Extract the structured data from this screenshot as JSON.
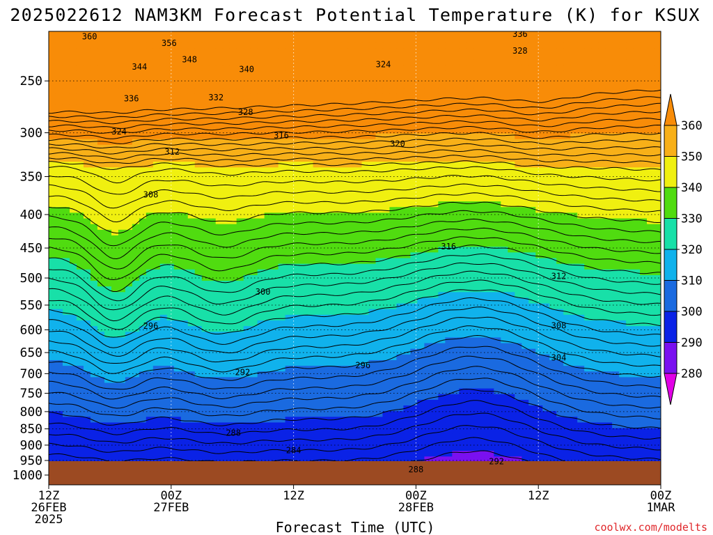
{
  "title": "2025022612 NAM3KM Forecast Potential Temperature (K) for KSUX",
  "credit": "coolwx.com/modelts",
  "chart_data": {
    "type": "heatmap",
    "title": "2025022612 NAM3KM Forecast Potential Temperature (K) for KSUX",
    "xlabel": "Forecast Time (UTC)",
    "ylabel": "",
    "x_range_hours": [
      0,
      60
    ],
    "y_range_hpa": [
      210,
      1035
    ],
    "y_scale": "log",
    "grid": true,
    "yticks": [
      250,
      300,
      350,
      400,
      450,
      500,
      550,
      600,
      650,
      700,
      750,
      800,
      850,
      900,
      950,
      1000
    ],
    "xticks": [
      {
        "hour": 0,
        "label": "12Z",
        "line2": "26FEB",
        "line3": "2025"
      },
      {
        "hour": 12,
        "label": "00Z",
        "line2": "27FEB",
        "line3": ""
      },
      {
        "hour": 24,
        "label": "12Z",
        "line2": "",
        "line3": ""
      },
      {
        "hour": 36,
        "label": "00Z",
        "line2": "28FEB",
        "line3": ""
      },
      {
        "hour": 48,
        "label": "12Z",
        "line2": "",
        "line3": ""
      },
      {
        "hour": 60,
        "label": "00Z",
        "line2": "1MAR",
        "line3": ""
      }
    ],
    "colorbar": {
      "levels": [
        280,
        290,
        300,
        310,
        320,
        330,
        340,
        350,
        360
      ],
      "colors": [
        "#e100e6",
        "#7a10f0",
        "#0a22e6",
        "#1a6ae0",
        "#10b2ec",
        "#18e0a8",
        "#50dc10",
        "#f0f010",
        "#f8b018",
        "#f88c08"
      ]
    },
    "surface_color": "#9c4a22",
    "contour_interval": 2,
    "contour_labels": [
      {
        "value": "360",
        "hour": 4.0,
        "p": 214
      },
      {
        "value": "356",
        "hour": 11.8,
        "p": 219
      },
      {
        "value": "348",
        "hour": 13.8,
        "p": 232
      },
      {
        "value": "344",
        "hour": 8.9,
        "p": 238
      },
      {
        "value": "340",
        "hour": 19.4,
        "p": 240
      },
      {
        "value": "336",
        "hour": 8.1,
        "p": 266
      },
      {
        "value": "332",
        "hour": 16.4,
        "p": 265
      },
      {
        "value": "328",
        "hour": 19.3,
        "p": 279
      },
      {
        "value": "324",
        "hour": 6.9,
        "p": 299
      },
      {
        "value": "316",
        "hour": 22.8,
        "p": 303
      },
      {
        "value": "312",
        "hour": 12.1,
        "p": 321
      },
      {
        "value": "320",
        "hour": 34.2,
        "p": 312
      },
      {
        "value": "324",
        "hour": 32.8,
        "p": 236
      },
      {
        "value": "336",
        "hour": 46.2,
        "p": 212
      },
      {
        "value": "328",
        "hour": 46.2,
        "p": 225
      },
      {
        "value": "308",
        "hour": 10.0,
        "p": 373
      },
      {
        "value": "316",
        "hour": 39.2,
        "p": 448
      },
      {
        "value": "312",
        "hour": 50.0,
        "p": 497
      },
      {
        "value": "300",
        "hour": 21.0,
        "p": 525
      },
      {
        "value": "296",
        "hour": 10.0,
        "p": 592
      },
      {
        "value": "308",
        "hour": 50.0,
        "p": 591
      },
      {
        "value": "304",
        "hour": 50.0,
        "p": 662
      },
      {
        "value": "296",
        "hour": 30.8,
        "p": 680
      },
      {
        "value": "292",
        "hour": 19.0,
        "p": 697
      },
      {
        "value": "288",
        "hour": 18.1,
        "p": 862
      },
      {
        "value": "284",
        "hour": 24.0,
        "p": 917
      },
      {
        "value": "292",
        "hour": 43.9,
        "p": 953
      },
      {
        "value": "288",
        "hour": 36.0,
        "p": 981
      }
    ]
  }
}
